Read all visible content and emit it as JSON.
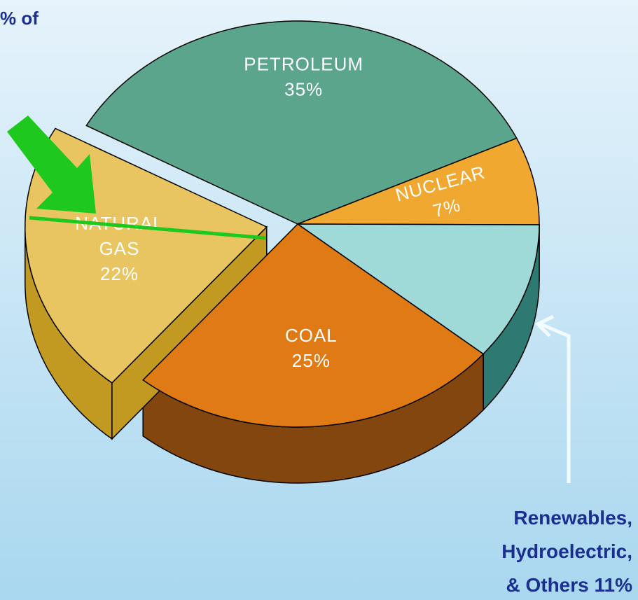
{
  "chart_data": {
    "type": "pie",
    "title": "% of",
    "categories": [
      "PETROLEUM",
      "NUCLEAR",
      null,
      "COAL",
      "NATURAL GAS"
    ],
    "values": [
      35,
      7,
      11,
      25,
      22
    ],
    "value_labels": [
      "35%",
      "7%",
      null,
      "25%",
      "22%"
    ],
    "colors": [
      "#5aa58c",
      "#f0a830",
      "#a0dad8",
      "#e07a14",
      "#e8c560"
    ],
    "side_colors": [
      "#3f7d6a",
      "#b87a1c",
      "#2e7a72",
      "#83460f",
      "#c29a22"
    ],
    "exploded": [
      false,
      false,
      false,
      false,
      true
    ],
    "annotation": [
      "Renewables,",
      "Hydroelectric,",
      "& Others 11%"
    ]
  }
}
